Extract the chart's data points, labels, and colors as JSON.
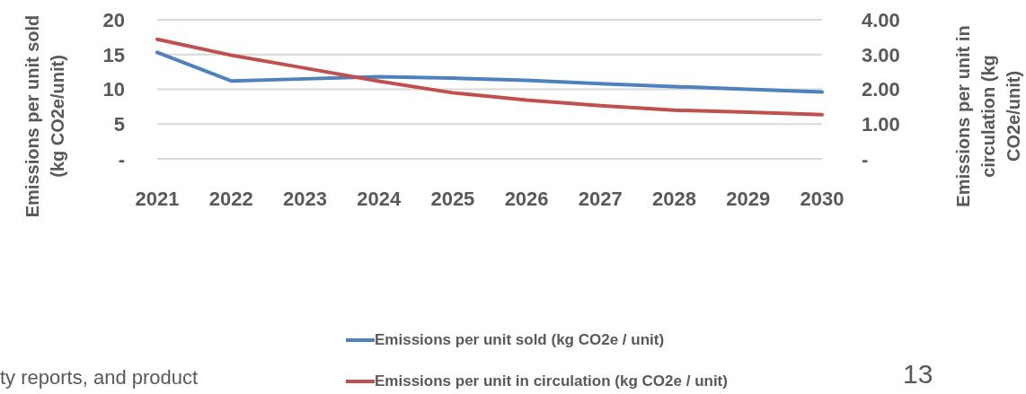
{
  "chart_data": {
    "type": "line",
    "ylabel": "Emissions per unit sold (kg CO2e/unit)",
    "y2label": "Emissions per unit in circulation (kg CO2e/unit)",
    "categories": [
      "2021",
      "2022",
      "2023",
      "2024",
      "2025",
      "2026",
      "2027",
      "2028",
      "2029",
      "2030"
    ],
    "series": [
      {
        "name": "Emissions per unit sold (kg CO2e / unit)",
        "color": "#4f81bd",
        "values": [
          15.3,
          11.2,
          11.5,
          11.8,
          11.6,
          11.3,
          10.8,
          10.4,
          10.0,
          9.6
        ]
      },
      {
        "name": "Emissions per unit in circulation (kg CO2e / unit)",
        "color": "#c0504d",
        "axis": "y2",
        "values": [
          3.44,
          2.98,
          2.61,
          2.23,
          1.9,
          1.69,
          1.53,
          1.4,
          1.34,
          1.27
        ]
      }
    ],
    "ylim": [
      0,
      20
    ],
    "yticks": [
      {
        "value": 0,
        "label": "-"
      },
      5,
      10,
      15,
      20
    ],
    "y2lim": [
      0,
      4
    ],
    "y2ticks": [
      {
        "value": 0,
        "label": "-"
      },
      {
        "value": 1,
        "label": "1.00"
      },
      {
        "value": 2,
        "label": "2.00"
      },
      {
        "value": 3,
        "label": "3.00"
      },
      {
        "value": 4,
        "label": "4.00"
      }
    ],
    "grid": "y",
    "legend": "bottom",
    "marker": "none",
    "line_style": "solid",
    "annotations": [
      "ty reports, and product",
      "13"
    ]
  }
}
